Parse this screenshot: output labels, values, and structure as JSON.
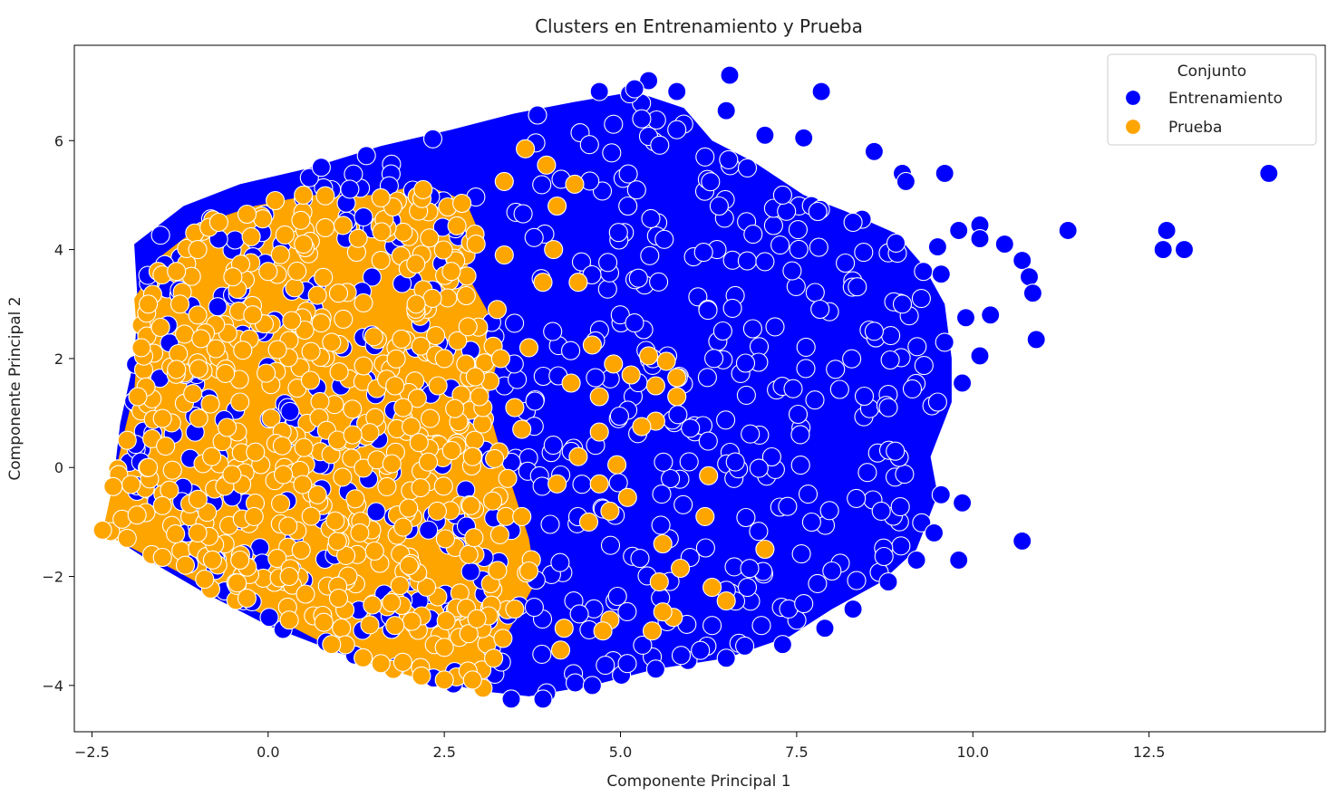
{
  "chart_data": {
    "type": "scatter",
    "title": "Clusters en Entrenamiento y Prueba",
    "xlabel": "Componente Principal 1",
    "ylabel": "Componente Principal 2",
    "xlim": [
      -2.75,
      15.0
    ],
    "ylim": [
      -4.85,
      7.75
    ],
    "xticks": [
      -2.5,
      0.0,
      2.5,
      5.0,
      7.5,
      10.0,
      12.5
    ],
    "xtick_labels": [
      "−2.5",
      "0.0",
      "2.5",
      "5.0",
      "7.5",
      "10.0",
      "12.5"
    ],
    "yticks": [
      -4,
      -2,
      0,
      2,
      4,
      6
    ],
    "ytick_labels": [
      "−4",
      "−2",
      "0",
      "2",
      "4",
      "6"
    ],
    "grid": false,
    "legend": {
      "title": "Conjunto",
      "placement": "top-right",
      "entries": [
        "Entrenamiento",
        "Prueba"
      ]
    },
    "series": [
      {
        "name": "Entrenamiento",
        "color": "#0000ff",
        "points": [
          [
            14.2,
            5.4
          ],
          [
            12.7,
            4.0
          ],
          [
            12.75,
            4.35
          ],
          [
            13.0,
            4.0
          ],
          [
            11.35,
            4.35
          ],
          [
            10.1,
            4.45
          ],
          [
            10.1,
            4.2
          ],
          [
            10.45,
            4.1
          ],
          [
            10.7,
            3.8
          ],
          [
            10.8,
            3.5
          ],
          [
            10.85,
            3.2
          ],
          [
            10.9,
            2.35
          ],
          [
            10.1,
            2.05
          ],
          [
            10.25,
            2.8
          ],
          [
            10.7,
            -1.35
          ],
          [
            9.85,
            -0.65
          ],
          [
            9.8,
            -1.7
          ],
          [
            9.6,
            5.4
          ],
          [
            6.55,
            7.2
          ],
          [
            7.85,
            6.9
          ],
          [
            5.4,
            7.1
          ],
          [
            6.5,
            6.55
          ],
          [
            7.05,
            6.1
          ],
          [
            7.6,
            6.05
          ],
          [
            9.0,
            5.4
          ],
          [
            9.5,
            4.05
          ],
          [
            9.3,
            3.6
          ],
          [
            5.8,
            6.9
          ],
          [
            4.7,
            6.9
          ],
          [
            5.2,
            6.95
          ],
          [
            9.8,
            4.35
          ],
          [
            9.55,
            3.55
          ],
          [
            8.6,
            5.8
          ],
          [
            9.05,
            5.25
          ],
          [
            9.6,
            2.3
          ],
          [
            9.9,
            2.75
          ],
          [
            9.85,
            1.55
          ],
          [
            9.5,
            1.2
          ],
          [
            9.55,
            -0.5
          ],
          [
            9.45,
            -1.2
          ],
          [
            9.2,
            -1.7
          ],
          [
            8.8,
            -2.1
          ],
          [
            8.3,
            -2.6
          ],
          [
            7.9,
            -2.95
          ],
          [
            7.3,
            -3.25
          ],
          [
            6.5,
            -3.5
          ],
          [
            5.5,
            -3.7
          ],
          [
            4.6,
            -4.0
          ],
          [
            3.9,
            -4.25
          ],
          [
            3.45,
            -4.25
          ],
          [
            9.0,
            3.0
          ],
          [
            8.6,
            2.5
          ],
          [
            8.8,
            1.1
          ],
          [
            8.9,
            0.3
          ],
          [
            8.7,
            -0.8
          ],
          [
            8.0,
            -1.9
          ],
          [
            7.6,
            -2.5
          ],
          [
            7.0,
            -2.9
          ],
          [
            6.8,
            -2.2
          ],
          [
            6.3,
            -2.9
          ],
          [
            8.3,
            4.5
          ],
          [
            8.45,
            3.95
          ],
          [
            7.8,
            4.7
          ],
          [
            7.3,
            5.0
          ],
          [
            6.8,
            5.5
          ],
          [
            6.2,
            5.7
          ],
          [
            5.8,
            6.2
          ],
          [
            5.3,
            6.4
          ],
          [
            4.9,
            6.3
          ],
          [
            6.4,
            4.8
          ]
        ]
      },
      {
        "name": "Prueba",
        "color": "#ffa500",
        "points": [
          [
            3.65,
            5.85
          ],
          [
            3.95,
            5.55
          ],
          [
            3.35,
            5.25
          ],
          [
            4.35,
            5.2
          ],
          [
            4.1,
            4.8
          ],
          [
            4.05,
            4.0
          ],
          [
            3.35,
            3.9
          ],
          [
            3.9,
            3.4
          ],
          [
            4.4,
            3.4
          ],
          [
            3.25,
            2.9
          ],
          [
            4.6,
            2.25
          ],
          [
            3.7,
            2.2
          ],
          [
            5.4,
            2.05
          ],
          [
            5.65,
            1.95
          ],
          [
            5.8,
            1.65
          ],
          [
            5.5,
            1.5
          ],
          [
            5.15,
            1.7
          ],
          [
            4.9,
            1.9
          ],
          [
            5.8,
            1.3
          ],
          [
            5.5,
            0.85
          ],
          [
            5.3,
            0.75
          ],
          [
            4.7,
            1.3
          ],
          [
            4.3,
            1.55
          ],
          [
            4.7,
            0.65
          ],
          [
            4.4,
            0.2
          ],
          [
            4.95,
            0.05
          ],
          [
            4.1,
            -0.3
          ],
          [
            4.7,
            -0.3
          ],
          [
            5.1,
            -0.55
          ],
          [
            4.85,
            -0.8
          ],
          [
            4.55,
            -1.0
          ],
          [
            6.25,
            -0.15
          ],
          [
            6.2,
            -0.9
          ],
          [
            7.05,
            -1.5
          ],
          [
            5.6,
            -1.4
          ],
          [
            5.85,
            -1.85
          ],
          [
            5.55,
            -2.1
          ],
          [
            6.3,
            -2.2
          ],
          [
            6.5,
            -2.45
          ],
          [
            5.75,
            -2.75
          ],
          [
            5.6,
            -2.65
          ],
          [
            5.45,
            -3.0
          ],
          [
            4.85,
            -2.8
          ],
          [
            4.75,
            -3.0
          ],
          [
            4.2,
            -2.95
          ],
          [
            4.15,
            -3.35
          ],
          [
            3.05,
            -4.05
          ],
          [
            2.9,
            -3.9
          ],
          [
            2.5,
            -3.9
          ],
          [
            1.6,
            -3.6
          ],
          [
            0.9,
            -3.25
          ],
          [
            0.3,
            -2.8
          ],
          [
            -0.3,
            -2.4
          ],
          [
            -0.9,
            -2.05
          ],
          [
            -1.5,
            -1.65
          ],
          [
            -2.0,
            -1.3
          ],
          [
            -2.35,
            -1.15
          ],
          [
            -2.2,
            -0.35
          ],
          [
            -2.0,
            0.5
          ],
          [
            -1.85,
            1.3
          ],
          [
            -1.8,
            2.2
          ],
          [
            -1.7,
            3.0
          ],
          [
            -1.3,
            3.6
          ],
          [
            -1.0,
            4.0
          ],
          [
            -0.7,
            4.5
          ],
          [
            -0.3,
            4.65
          ],
          [
            0.1,
            4.9
          ],
          [
            0.5,
            5.0
          ],
          [
            1.6,
            4.95
          ],
          [
            2.2,
            5.1
          ],
          [
            2.75,
            4.85
          ],
          [
            2.95,
            4.1
          ],
          [
            2.6,
            3.6
          ],
          [
            3.3,
            2.0
          ],
          [
            3.0,
            1.3
          ],
          [
            2.5,
            2.0
          ],
          [
            2.1,
            3.0
          ],
          [
            1.6,
            3.8
          ],
          [
            1.0,
            3.2
          ],
          [
            0.5,
            4.1
          ],
          [
            0.0,
            3.6
          ],
          [
            -0.5,
            3.5
          ],
          [
            -1.0,
            2.8
          ],
          [
            -1.3,
            1.8
          ],
          [
            -1.5,
            0.9
          ],
          [
            -1.7,
            0.0
          ],
          [
            -1.5,
            -0.7
          ],
          [
            -1.0,
            -1.2
          ],
          [
            -0.4,
            -1.7
          ],
          [
            0.3,
            -2.0
          ],
          [
            1.0,
            -2.4
          ],
          [
            1.8,
            -2.9
          ],
          [
            2.5,
            -3.3
          ],
          [
            3.2,
            -3.5
          ],
          [
            3.5,
            -2.6
          ],
          [
            3.7,
            -1.9
          ],
          [
            3.6,
            -0.9
          ],
          [
            3.4,
            -0.2
          ],
          [
            3.6,
            0.7
          ],
          [
            3.5,
            1.1
          ],
          [
            2.9,
            0.2
          ],
          [
            2.4,
            -0.8
          ],
          [
            2.0,
            -1.8
          ],
          [
            1.3,
            -1.2
          ],
          [
            0.7,
            -0.5
          ],
          [
            0.2,
            0.4
          ],
          [
            -0.4,
            1.2
          ],
          [
            -0.8,
            0.2
          ],
          [
            -0.2,
            -0.9
          ],
          [
            0.6,
            1.6
          ],
          [
            1.2,
            0.6
          ],
          [
            1.8,
            1.5
          ],
          [
            2.3,
            0.9
          ],
          [
            1.5,
            2.4
          ],
          [
            0.9,
            2.3
          ]
        ]
      }
    ]
  }
}
